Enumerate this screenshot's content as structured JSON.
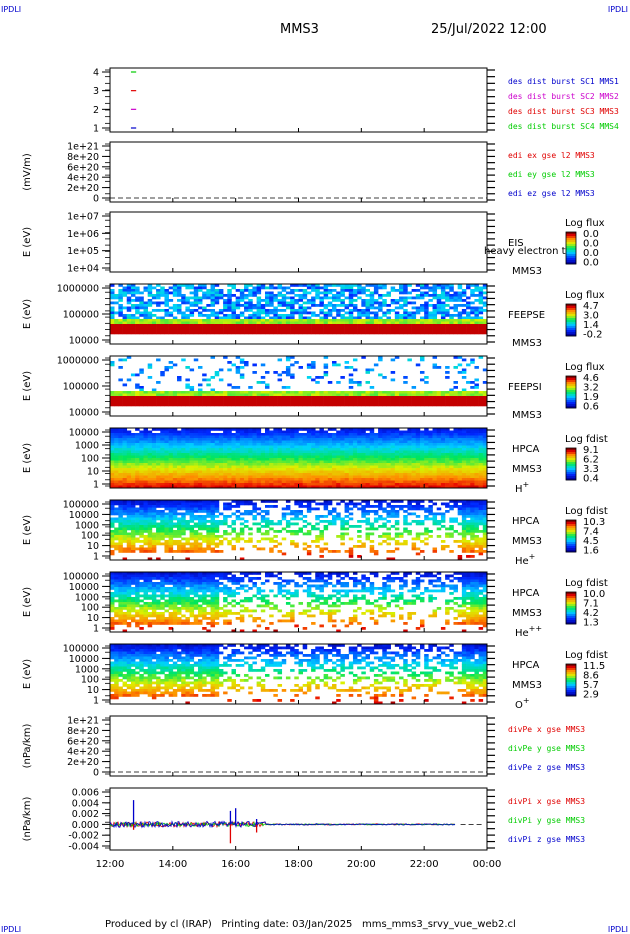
{
  "corner_label": "IPDLI",
  "header": {
    "spacecraft": "MMS3",
    "datetime": "25/Jul/2022 12:00"
  },
  "footer": {
    "credit": "Produced by cl (IRAP)",
    "printed": "Printing date: 03/Jan/2025",
    "file": "mms_mms3_srvy_vue_web2.cl"
  },
  "colors": {
    "red": "#e00000",
    "green": "#00cc00",
    "blue": "#0000cc",
    "magenta": "#cc00cc",
    "darkred": "#a00000"
  },
  "chart_data": [
    {
      "type": "line",
      "title": "",
      "ylabel": "",
      "ylim": [
        0.5,
        4.5
      ],
      "y_ticks": [
        "4",
        "3",
        "2",
        "1"
      ],
      "legend": [
        {
          "label": "des dist burst SC1 MMS1",
          "color": "#0000cc"
        },
        {
          "label": "des dist burst SC2 MMS2",
          "color": "#cc00cc"
        },
        {
          "label": "des dist burst SC3 MMS3",
          "color": "#e00000"
        },
        {
          "label": "des dist burst SC4 MMS4",
          "color": "#00cc00"
        }
      ],
      "segments": [
        {
          "y": 4,
          "x_start": "12:40",
          "x_end": "12:50",
          "color": "#00cc00"
        },
        {
          "y": 3,
          "x_start": "12:40",
          "x_end": "12:50",
          "color": "#e00000"
        },
        {
          "y": 2,
          "x_start": "12:40",
          "x_end": "12:50",
          "color": "#cc00cc"
        },
        {
          "y": 1,
          "x_start": "12:40",
          "x_end": "12:50",
          "color": "#0000cc"
        }
      ]
    },
    {
      "type": "line",
      "ylabel": "(mV/m)",
      "y_ticks": [
        "1e+21",
        "8e+20",
        "6e+20",
        "4e+20",
        "2e+20",
        "0"
      ],
      "legend": [
        {
          "label": "edi ex gse l2 MMS3",
          "color": "#e00000"
        },
        {
          "label": "edi ey gse l2 MMS3",
          "color": "#00cc00"
        },
        {
          "label": "edi ez gse l2 MMS3",
          "color": "#0000cc"
        }
      ],
      "zero_line": true
    },
    {
      "type": "heatmap",
      "ylabel": "E (eV)",
      "y_ticks": [
        "1e+07",
        "1e+06",
        "1e+05",
        "1e+04"
      ],
      "instrument": "EIS",
      "overlay_text": "heavy electron to",
      "spacecraft": "MMS3",
      "colorbar": {
        "title": "Log flux",
        "ticks": [
          "0.0",
          "0.0",
          "0.0",
          "0.0"
        ]
      },
      "filled": false
    },
    {
      "type": "heatmap",
      "ylabel": "E (eV)",
      "y_ticks": [
        "1000000",
        "100000",
        "10000"
      ],
      "instrument": "FEEPSE",
      "spacecraft": "MMS3",
      "colorbar": {
        "title": "Log flux",
        "ticks": [
          "4.7",
          "3.0",
          "1.4",
          "-0.2"
        ]
      },
      "filled": true
    },
    {
      "type": "heatmap",
      "ylabel": "E (eV)",
      "y_ticks": [
        "1000000",
        "100000",
        "10000"
      ],
      "instrument": "FEEPSI",
      "spacecraft": "MMS3",
      "colorbar": {
        "title": "Log flux",
        "ticks": [
          "4.6",
          "3.2",
          "1.9",
          "0.6"
        ]
      },
      "filled": true
    },
    {
      "type": "heatmap",
      "ylabel": "E (eV)",
      "y_ticks": [
        "10000",
        "1000",
        "100",
        "10",
        "1"
      ],
      "instrument": "HPCA",
      "spacecraft": "MMS3",
      "species": "H",
      "species_sup": "+",
      "colorbar": {
        "title": "Log fdist",
        "ticks": [
          "9.1",
          "6.2",
          "3.3",
          "0.4"
        ]
      },
      "filled": true
    },
    {
      "type": "heatmap",
      "ylabel": "E (eV)",
      "y_ticks": [
        "100000",
        "10000",
        "1000",
        "100",
        "10",
        "1"
      ],
      "instrument": "HPCA",
      "spacecraft": "MMS3",
      "species": "He",
      "species_sup": "+",
      "colorbar": {
        "title": "Log fdist",
        "ticks": [
          "10.3",
          "7.4",
          "4.5",
          "1.6"
        ]
      },
      "filled": true
    },
    {
      "type": "heatmap",
      "ylabel": "E (eV)",
      "y_ticks": [
        "100000",
        "10000",
        "1000",
        "100",
        "10",
        "1"
      ],
      "instrument": "HPCA",
      "spacecraft": "MMS3",
      "species": "He",
      "species_sup": "++",
      "colorbar": {
        "title": "Log fdist",
        "ticks": [
          "10.0",
          "7.1",
          "4.2",
          "1.3"
        ]
      },
      "filled": true
    },
    {
      "type": "heatmap",
      "ylabel": "E (eV)",
      "y_ticks": [
        "100000",
        "10000",
        "1000",
        "100",
        "10",
        "1"
      ],
      "instrument": "HPCA",
      "spacecraft": "MMS3",
      "species": "O",
      "species_sup": "+",
      "colorbar": {
        "title": "Log fdist",
        "ticks": [
          "11.5",
          "8.6",
          "5.7",
          "2.9"
        ]
      },
      "filled": true
    },
    {
      "type": "line",
      "ylabel": "(nPa/km)",
      "y_ticks": [
        "1e+21",
        "8e+20",
        "6e+20",
        "4e+20",
        "2e+20",
        "0"
      ],
      "legend": [
        {
          "label": "divPe x gse MMS3",
          "color": "#e00000"
        },
        {
          "label": "divPe y gse MMS3",
          "color": "#00cc00"
        },
        {
          "label": "divPe z gse MMS3",
          "color": "#0000cc"
        }
      ],
      "zero_line": true
    },
    {
      "type": "line",
      "ylabel": "(nPa/km)",
      "ylim": [
        -0.006,
        0.007
      ],
      "y_ticks": [
        "0.006",
        "0.004",
        "0.002",
        "0.000",
        "-0.002",
        "-0.004"
      ],
      "legend": [
        {
          "label": "divPi x gse MMS3",
          "color": "#e00000"
        },
        {
          "label": "divPi y gse MMS3",
          "color": "#00cc00"
        },
        {
          "label": "divPi z gse MMS3",
          "color": "#0000cc"
        }
      ],
      "series_note": "fluctuating around 0.000, spikes near 12:45, 15:45-16:00 and 16:40",
      "spikes": [
        {
          "x": "12:45",
          "y": 0.0045,
          "color": "#0000cc"
        },
        {
          "x": "12:45",
          "y": -0.001,
          "color": "#e00000"
        },
        {
          "x": "15:50",
          "y": 0.0025,
          "color": "#0000cc"
        },
        {
          "x": "15:50",
          "y": -0.0035,
          "color": "#e00000"
        },
        {
          "x": "16:00",
          "y": 0.003,
          "color": "#0000cc"
        },
        {
          "x": "16:40",
          "y": -0.0015,
          "color": "#e00000"
        },
        {
          "x": "16:40",
          "y": 0.001,
          "color": "#0000cc"
        }
      ]
    }
  ],
  "x_axis": {
    "ticks": [
      "12:00",
      "14:00",
      "16:00",
      "18:00",
      "20:00",
      "22:00",
      "00:00"
    ]
  }
}
